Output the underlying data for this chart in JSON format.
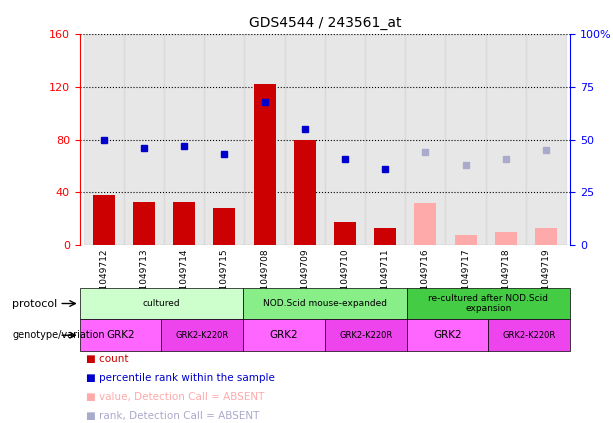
{
  "title": "GDS4544 / 243561_at",
  "samples": [
    "GSM1049712",
    "GSM1049713",
    "GSM1049714",
    "GSM1049715",
    "GSM1049708",
    "GSM1049709",
    "GSM1049710",
    "GSM1049711",
    "GSM1049716",
    "GSM1049717",
    "GSM1049718",
    "GSM1049719"
  ],
  "count_values": [
    38,
    33,
    33,
    28,
    122,
    80,
    18,
    13,
    null,
    null,
    null,
    null
  ],
  "count_absent_values": [
    null,
    null,
    null,
    null,
    null,
    null,
    null,
    null,
    32,
    8,
    10,
    13
  ],
  "rank_values": [
    50,
    46,
    47,
    43,
    68,
    55,
    41,
    36,
    null,
    null,
    null,
    null
  ],
  "rank_absent_values": [
    null,
    null,
    null,
    null,
    null,
    null,
    null,
    null,
    44,
    38,
    41,
    45
  ],
  "left_ylim": [
    0,
    160
  ],
  "right_ylim": [
    0,
    100
  ],
  "left_yticks": [
    0,
    40,
    80,
    120,
    160
  ],
  "right_yticks": [
    0,
    25,
    50,
    75,
    100
  ],
  "right_yticklabels": [
    "0",
    "25",
    "50",
    "75",
    "100%"
  ],
  "bar_color_present": "#cc0000",
  "bar_color_absent": "#ffaaaa",
  "dot_color_present": "#0000cc",
  "dot_color_absent": "#aaaacc",
  "protocol_groups": [
    {
      "label": "cultured",
      "start": 0,
      "end": 4,
      "color": "#ccffcc"
    },
    {
      "label": "NOD.Scid mouse-expanded",
      "start": 4,
      "end": 8,
      "color": "#88ee88"
    },
    {
      "label": "re-cultured after NOD.Scid\nexpansion",
      "start": 8,
      "end": 12,
      "color": "#44cc44"
    }
  ],
  "genotype_groups": [
    {
      "label": "GRK2",
      "start": 0,
      "end": 2,
      "color": "#ff66ff"
    },
    {
      "label": "GRK2-K220R",
      "start": 2,
      "end": 4,
      "color": "#ee44ee"
    },
    {
      "label": "GRK2",
      "start": 4,
      "end": 6,
      "color": "#ff66ff"
    },
    {
      "label": "GRK2-K220R",
      "start": 6,
      "end": 8,
      "color": "#ee44ee"
    },
    {
      "label": "GRK2",
      "start": 8,
      "end": 10,
      "color": "#ff66ff"
    },
    {
      "label": "GRK2-K220R",
      "start": 10,
      "end": 12,
      "color": "#ee44ee"
    }
  ],
  "legend_items": [
    {
      "label": "count",
      "color": "#cc0000"
    },
    {
      "label": "percentile rank within the sample",
      "color": "#0000cc"
    },
    {
      "label": "value, Detection Call = ABSENT",
      "color": "#ffaaaa"
    },
    {
      "label": "rank, Detection Call = ABSENT",
      "color": "#aaaacc"
    }
  ],
  "col_bg_color": "#d8d8d8"
}
